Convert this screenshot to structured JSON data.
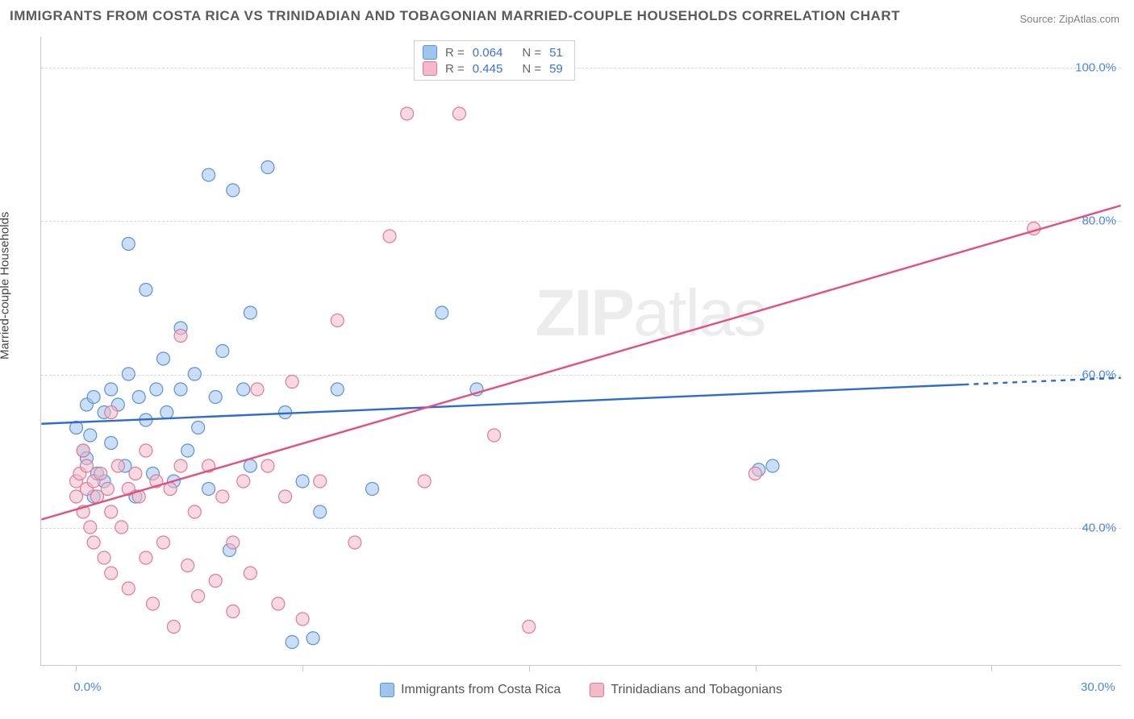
{
  "title": "IMMIGRANTS FROM COSTA RICA VS TRINIDADIAN AND TOBAGONIAN MARRIED-COUPLE HOUSEHOLDS CORRELATION CHART",
  "source": "Source: ZipAtlas.com",
  "watermark_a": "ZIP",
  "watermark_b": "atlas",
  "ylabel": "Married-couple Households",
  "chart": {
    "type": "scatter",
    "background_color": "#ffffff",
    "grid_color": "#d8d8d8",
    "border_color": "#c9c9c9",
    "xlim": [
      -1,
      30
    ],
    "ylim": [
      22,
      104
    ],
    "y_ticks": [
      40,
      60,
      80,
      100
    ],
    "y_tick_labels": [
      "40.0%",
      "60.0%",
      "80.0%",
      "100.0%"
    ],
    "x_tick_major": [
      0,
      6.5,
      13,
      19.5,
      26.25
    ],
    "x_label_min": "0.0%",
    "x_label_max": "30.0%",
    "marker_radius": 8,
    "marker_opacity": 0.55,
    "marker_stroke_width": 1.2,
    "series": [
      {
        "name": "Immigrants from Costa Rica",
        "fill": "#9ec5f0",
        "stroke": "#5b93d6",
        "r_value": "0.064",
        "n_value": "51",
        "trend": {
          "y0": 53.5,
          "y1": 59.5,
          "solid_until_x": 25.5,
          "stroke": "#2e6bd0",
          "width": 2.4
        },
        "points": [
          [
            0.0,
            53
          ],
          [
            0.2,
            50
          ],
          [
            0.3,
            49
          ],
          [
            0.3,
            56
          ],
          [
            0.4,
            52
          ],
          [
            0.5,
            44
          ],
          [
            0.5,
            57
          ],
          [
            0.6,
            47
          ],
          [
            0.8,
            55
          ],
          [
            0.8,
            46
          ],
          [
            1.0,
            58
          ],
          [
            1.0,
            51
          ],
          [
            1.2,
            56
          ],
          [
            1.4,
            48
          ],
          [
            1.5,
            77
          ],
          [
            1.5,
            60
          ],
          [
            1.7,
            44
          ],
          [
            1.8,
            57
          ],
          [
            2.0,
            54
          ],
          [
            2.0,
            71
          ],
          [
            2.2,
            47
          ],
          [
            2.3,
            58
          ],
          [
            2.5,
            62
          ],
          [
            2.6,
            55
          ],
          [
            2.8,
            46
          ],
          [
            3.0,
            66
          ],
          [
            3.0,
            58
          ],
          [
            3.2,
            50
          ],
          [
            3.4,
            60
          ],
          [
            3.5,
            53
          ],
          [
            3.8,
            45
          ],
          [
            3.8,
            86
          ],
          [
            4.0,
            57
          ],
          [
            4.2,
            63
          ],
          [
            4.4,
            37
          ],
          [
            4.5,
            84
          ],
          [
            4.8,
            58
          ],
          [
            5.0,
            48
          ],
          [
            5.0,
            68
          ],
          [
            5.5,
            87
          ],
          [
            6.0,
            55
          ],
          [
            6.2,
            25
          ],
          [
            6.5,
            46
          ],
          [
            7.0,
            42
          ],
          [
            7.5,
            58
          ],
          [
            8.5,
            45
          ],
          [
            10.5,
            68
          ],
          [
            11.5,
            58
          ],
          [
            20.0,
            48
          ],
          [
            19.6,
            47.5
          ],
          [
            6.8,
            25.5
          ]
        ]
      },
      {
        "name": "Trinidadians and Tobagonians",
        "fill": "#f3b9c8",
        "stroke": "#e07a9a",
        "r_value": "0.445",
        "n_value": "59",
        "trend": {
          "y0": 41,
          "y1": 82,
          "solid_until_x": 30,
          "stroke": "#e44f7e",
          "width": 2.4
        },
        "points": [
          [
            0.0,
            46
          ],
          [
            0.0,
            44
          ],
          [
            0.1,
            47
          ],
          [
            0.2,
            42
          ],
          [
            0.2,
            50
          ],
          [
            0.3,
            45
          ],
          [
            0.3,
            48
          ],
          [
            0.4,
            40
          ],
          [
            0.5,
            46
          ],
          [
            0.5,
            38
          ],
          [
            0.6,
            44
          ],
          [
            0.7,
            47
          ],
          [
            0.8,
            36
          ],
          [
            0.9,
            45
          ],
          [
            1.0,
            42
          ],
          [
            1.0,
            34
          ],
          [
            1.2,
            48
          ],
          [
            1.3,
            40
          ],
          [
            1.5,
            45
          ],
          [
            1.5,
            32
          ],
          [
            1.7,
            47
          ],
          [
            1.8,
            44
          ],
          [
            2.0,
            36
          ],
          [
            2.0,
            50
          ],
          [
            2.2,
            30
          ],
          [
            2.3,
            46
          ],
          [
            2.5,
            38
          ],
          [
            2.7,
            45
          ],
          [
            2.8,
            27
          ],
          [
            3.0,
            48
          ],
          [
            3.2,
            35
          ],
          [
            3.4,
            42
          ],
          [
            3.5,
            31
          ],
          [
            3.8,
            48
          ],
          [
            4.0,
            33
          ],
          [
            4.2,
            44
          ],
          [
            4.5,
            38
          ],
          [
            4.5,
            29
          ],
          [
            4.8,
            46
          ],
          [
            5.0,
            34
          ],
          [
            5.2,
            58
          ],
          [
            5.5,
            48
          ],
          [
            5.8,
            30
          ],
          [
            6.0,
            44
          ],
          [
            6.2,
            59
          ],
          [
            6.5,
            28
          ],
          [
            7.0,
            46
          ],
          [
            7.5,
            67
          ],
          [
            8.0,
            38
          ],
          [
            9.0,
            78
          ],
          [
            9.5,
            94
          ],
          [
            10.0,
            46
          ],
          [
            11.0,
            94
          ],
          [
            12.0,
            52
          ],
          [
            13.0,
            27
          ],
          [
            19.5,
            47
          ],
          [
            27.5,
            79
          ],
          [
            3.0,
            65
          ],
          [
            1.0,
            55
          ]
        ]
      }
    ]
  },
  "legend_top": {
    "r_label": "R =",
    "n_label": "N ="
  },
  "tick_label_color": "#4a86e8"
}
